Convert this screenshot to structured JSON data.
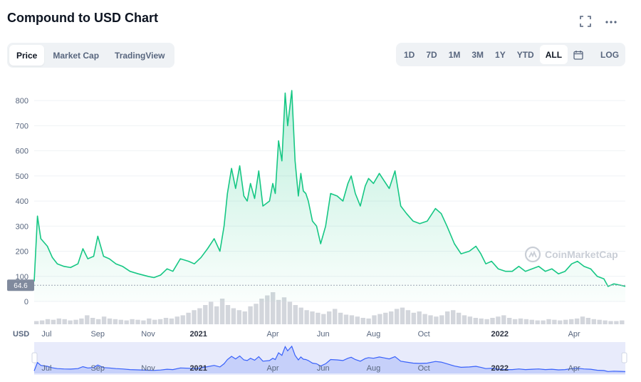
{
  "header": {
    "title": "Compound to USD Chart",
    "fullscreen_icon": "expand-icon",
    "more_icon": "more-dots-icon"
  },
  "tabs": [
    {
      "label": "Price",
      "active": true
    },
    {
      "label": "Market Cap",
      "active": false
    },
    {
      "label": "TradingView",
      "active": false
    }
  ],
  "ranges": [
    {
      "label": "1D",
      "active": false
    },
    {
      "label": "7D",
      "active": false
    },
    {
      "label": "1M",
      "active": false
    },
    {
      "label": "3M",
      "active": false
    },
    {
      "label": "1Y",
      "active": false
    },
    {
      "label": "YTD",
      "active": false
    },
    {
      "label": "ALL",
      "active": true
    }
  ],
  "calendar_icon": "calendar-icon",
  "log_label": "LOG",
  "chart_data": {
    "type": "area",
    "title": "",
    "ylabel": "",
    "currency_label": "USD",
    "current_price_label": "64.6",
    "watermark": "CoinMarketCap",
    "ylim": [
      0,
      860
    ],
    "yticks": [
      0,
      100,
      200,
      300,
      400,
      500,
      600,
      700,
      800
    ],
    "xlim": [
      "2020-06-16",
      "2022-06-02"
    ],
    "xticks": [
      {
        "label": "Jul",
        "date": "2020-07-01",
        "bold": false
      },
      {
        "label": "Sep",
        "date": "2020-09-01",
        "bold": false
      },
      {
        "label": "Nov",
        "date": "2020-11-01",
        "bold": false
      },
      {
        "label": "2021",
        "date": "2021-01-01",
        "bold": true
      },
      {
        "label": "Apr",
        "date": "2021-04-01",
        "bold": false
      },
      {
        "label": "Jun",
        "date": "2021-06-01",
        "bold": false
      },
      {
        "label": "Aug",
        "date": "2021-08-01",
        "bold": false
      },
      {
        "label": "Oct",
        "date": "2021-10-01",
        "bold": false
      },
      {
        "label": "2022",
        "date": "2022-01-01",
        "bold": true
      },
      {
        "label": "Apr",
        "date": "2022-04-01",
        "bold": false
      }
    ],
    "grid": true,
    "colors": {
      "line": "#16c784",
      "fill": "#16c784",
      "volume": "#d3d6dc",
      "navigator": "#3861fb",
      "label_bg": "#808a9d"
    },
    "series": [
      {
        "x": [
          "2020-06-16",
          "2020-06-20",
          "2020-06-24",
          "2020-07-02",
          "2020-07-08",
          "2020-07-14",
          "2020-07-22",
          "2020-07-30",
          "2020-08-08",
          "2020-08-14",
          "2020-08-20",
          "2020-08-27",
          "2020-09-01",
          "2020-09-08",
          "2020-09-15",
          "2020-09-23",
          "2020-10-01",
          "2020-10-10",
          "2020-10-20",
          "2020-11-01",
          "2020-11-08",
          "2020-11-16",
          "2020-11-24",
          "2020-12-01",
          "2020-12-10",
          "2020-12-20",
          "2020-12-27",
          "2021-01-04",
          "2021-01-12",
          "2021-01-20",
          "2021-01-27",
          "2021-02-01",
          "2021-02-05",
          "2021-02-10",
          "2021-02-15",
          "2021-02-20",
          "2021-02-25",
          "2021-03-01",
          "2021-03-05",
          "2021-03-10",
          "2021-03-15",
          "2021-03-20",
          "2021-03-28",
          "2021-04-01",
          "2021-04-04",
          "2021-04-08",
          "2021-04-12",
          "2021-04-16",
          "2021-04-19",
          "2021-04-24",
          "2021-04-28",
          "2021-05-02",
          "2021-05-05",
          "2021-05-08",
          "2021-05-11",
          "2021-05-14",
          "2021-05-19",
          "2021-05-24",
          "2021-05-29",
          "2021-06-04",
          "2021-06-10",
          "2021-06-18",
          "2021-06-25",
          "2021-07-01",
          "2021-07-05",
          "2021-07-10",
          "2021-07-16",
          "2021-07-22",
          "2021-07-26",
          "2021-08-01",
          "2021-08-08",
          "2021-08-14",
          "2021-08-20",
          "2021-08-27",
          "2021-09-03",
          "2021-09-10",
          "2021-09-18",
          "2021-09-26",
          "2021-10-05",
          "2021-10-15",
          "2021-10-22",
          "2021-10-29",
          "2021-11-07",
          "2021-11-15",
          "2021-11-25",
          "2021-12-03",
          "2021-12-09",
          "2021-12-15",
          "2021-12-22",
          "2021-12-30",
          "2022-01-08",
          "2022-01-16",
          "2022-01-24",
          "2022-02-01",
          "2022-02-09",
          "2022-02-17",
          "2022-02-25",
          "2022-03-05",
          "2022-03-13",
          "2022-03-21",
          "2022-03-29",
          "2022-04-05",
          "2022-04-13",
          "2022-04-21",
          "2022-04-29",
          "2022-05-07",
          "2022-05-12",
          "2022-05-19",
          "2022-05-27",
          "2022-06-02"
        ],
        "y": [
          80,
          340,
          250,
          220,
          175,
          150,
          140,
          135,
          150,
          210,
          170,
          180,
          260,
          180,
          170,
          150,
          140,
          120,
          110,
          100,
          95,
          105,
          130,
          120,
          170,
          160,
          150,
          175,
          210,
          250,
          200,
          300,
          430,
          530,
          450,
          540,
          420,
          400,
          470,
          410,
          520,
          380,
          400,
          470,
          430,
          640,
          560,
          830,
          700,
          840,
          560,
          420,
          510,
          440,
          430,
          400,
          320,
          300,
          230,
          300,
          430,
          420,
          400,
          470,
          500,
          430,
          380,
          460,
          490,
          470,
          510,
          480,
          450,
          520,
          380,
          350,
          320,
          310,
          320,
          370,
          350,
          300,
          230,
          190,
          200,
          220,
          190,
          150,
          160,
          130,
          120,
          120,
          140,
          120,
          130,
          140,
          120,
          130,
          110,
          120,
          150,
          160,
          140,
          130,
          100,
          90,
          60,
          70,
          65,
          60
        ]
      }
    ],
    "volume": [
      5,
      6,
      8,
      7,
      9,
      8,
      6,
      7,
      9,
      14,
      10,
      8,
      12,
      9,
      8,
      7,
      6,
      8,
      7,
      6,
      9,
      7,
      8,
      10,
      9,
      12,
      14,
      18,
      22,
      25,
      30,
      35,
      28,
      40,
      30,
      25,
      22,
      20,
      28,
      32,
      40,
      45,
      50,
      38,
      42,
      35,
      30,
      26,
      22,
      20,
      18,
      16,
      20,
      24,
      18,
      15,
      14,
      12,
      10,
      9,
      14,
      16,
      18,
      20,
      24,
      26,
      22,
      18,
      20,
      16,
      14,
      12,
      14,
      20,
      22,
      18,
      14,
      12,
      10,
      9,
      8,
      10,
      12,
      14,
      10,
      8,
      9,
      8,
      7,
      6,
      6,
      8,
      7,
      6,
      7,
      8,
      9,
      12,
      10,
      8,
      7,
      6,
      5,
      5,
      6
    ]
  }
}
